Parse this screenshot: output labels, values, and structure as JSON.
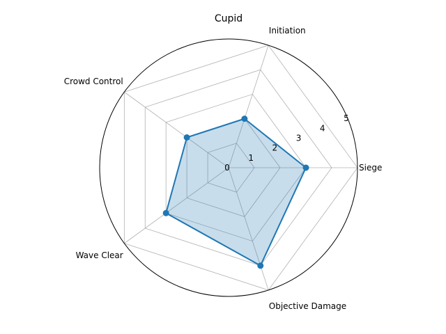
{
  "chart_data": {
    "type": "radar",
    "title": "Cupid",
    "categories": [
      "Siege",
      "Initiation",
      "Crowd Control",
      "Wave Clear",
      "Objective Damage"
    ],
    "values": [
      3,
      2,
      2,
      3,
      4
    ],
    "rlim": [
      0,
      5
    ],
    "r_ticks": [
      0,
      1,
      2,
      3,
      4,
      5
    ],
    "grid": true,
    "series_color": "#1f77b4",
    "fill_color": "#1f77b4",
    "grid_color": "#b0b0b0"
  }
}
